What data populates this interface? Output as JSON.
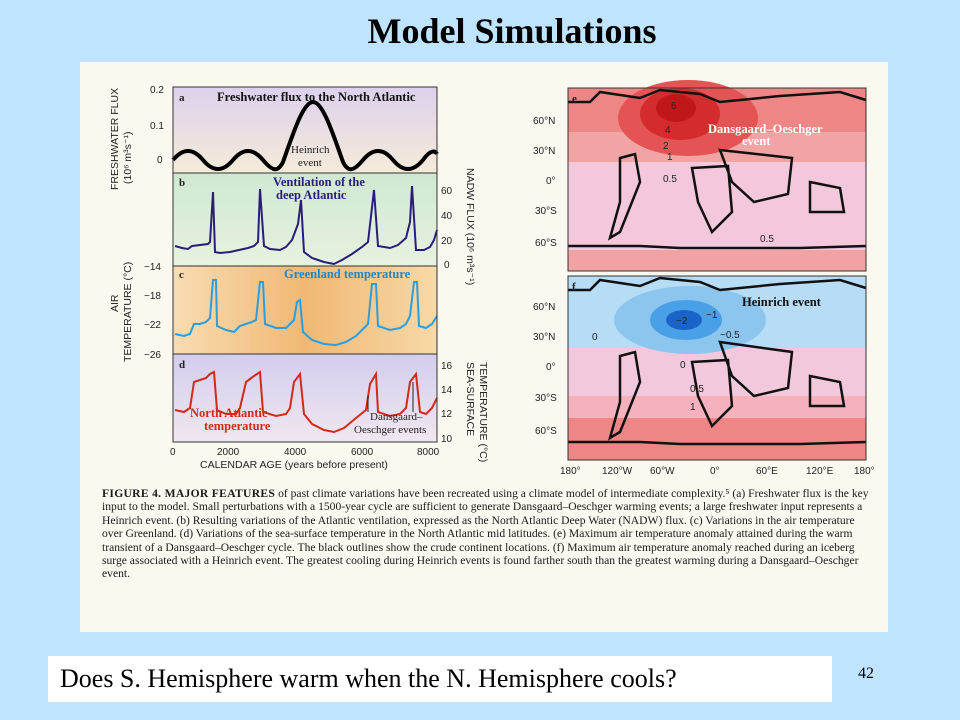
{
  "slide": {
    "title": "Model Simulations",
    "question": "Does S. Hemisphere warm when the N. Hemisphere cools?",
    "page_number": "42"
  },
  "figure": {
    "left_panels": {
      "a": {
        "letter": "a",
        "title": "Freshwater flux to the North Atlantic",
        "annotation_line1": "Heinrich",
        "annotation_line2": "event",
        "yticks": [
          "0.2",
          "0.1",
          "0"
        ]
      },
      "b": {
        "letter": "b",
        "title_line1": "Ventilation of the",
        "title_line2": "deep Atlantic",
        "yticks_right": [
          "60",
          "40",
          "20",
          "0"
        ]
      },
      "c": {
        "letter": "c",
        "title": "Greenland temperature",
        "yticks": [
          "−14",
          "−18",
          "−22",
          "−26"
        ]
      },
      "d": {
        "letter": "d",
        "title_line1": "North Atlantic",
        "title_line2": "temperature",
        "annotation_line1": "Dansgaard–",
        "annotation_line2": "Oeschger events",
        "yticks_right": [
          "16",
          "14",
          "12",
          "10"
        ]
      },
      "xticks": [
        "0",
        "2000",
        "4000",
        "6000",
        "8000"
      ],
      "xlabel": "CALENDAR AGE (years before present)",
      "ylabel_left_top_line1": "FRESHWATER FLUX",
      "ylabel_left_top_line2": "(10⁶ m³s⁻¹)",
      "ylabel_right_top": "NADW FLUX (10⁶ m³s⁻¹)",
      "ylabel_left_bottom_line1": "AIR",
      "ylabel_left_bottom_line2": "TEMPERATURE (°C)",
      "ylabel_right_bottom_line1": "SEA-SURFACE",
      "ylabel_right_bottom_line2": "TEMPERATURE (°C)"
    },
    "right_panels": {
      "e": {
        "letter": "e",
        "title_line1": "Dansgaard–Oeschger",
        "title_line2": "event",
        "contours": [
          "6",
          "4",
          "2",
          "1",
          "0.5",
          "0.5"
        ]
      },
      "f": {
        "letter": "f",
        "title": "Heinrich event",
        "contours": [
          "−2",
          "−1",
          "−0.5",
          "0",
          "0",
          "0.5",
          "1"
        ]
      },
      "lat_ticks": [
        "60°N",
        "30°N",
        "0°",
        "30°S",
        "60°S"
      ],
      "lon_ticks": [
        "180°",
        "120°W",
        "60°W",
        "0°",
        "60°E",
        "120°E",
        "180°"
      ]
    },
    "caption": {
      "lead": "FIGURE 4. MAJOR FEATURES",
      "text": " of past climate variations have been recreated using a climate model of intermediate complexity.⁵ (a) Freshwater flux is the key input to the model. Small perturbations with a 1500-year cycle are sufficient to generate Dansgaard–Oeschger warming events; a large freshwater input represents a Heinrich event. (b) Resulting variations of the Atlantic ventilation, expressed as the North Atlantic Deep Water (NADW) flux. (c) Variations in the air temperature over Greenland. (d) Variations of the sea-surface temperature in the North Atlantic mid latitudes. (e) Maximum air temperature anomaly attained during the warm transient of a Dansgaard–Oeschger cycle. The black outlines show the crude continent locations. (f) Maximum air temperature anomaly reached during an iceberg surge associated with a Heinrich event. The greatest cooling during Heinrich events is found farther south than the greatest warming during a Dansgaard–Oeschger event."
    }
  },
  "colors": {
    "background": "#bfe4ff",
    "freshwater_panel": "#ece0f0",
    "ventilation_panel": "#d6ecd8",
    "greenland_panel": "#f2c58a",
    "na_temp_panel": "#dcd6ee",
    "ventilation_line": "#2a1d7a",
    "greenland_line": "#2a9ee0",
    "na_temp_line": "#d02a1a",
    "warm_map": "#f27a7a",
    "cold_map": "#4aa0e6"
  }
}
